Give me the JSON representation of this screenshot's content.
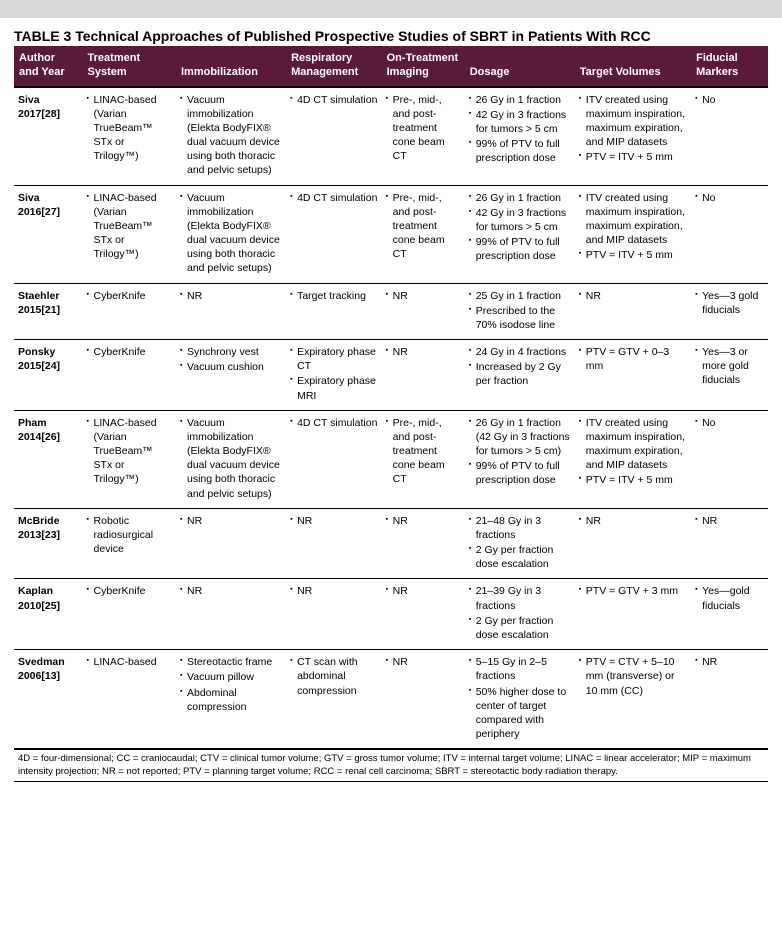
{
  "title_label": "TABLE 3",
  "title_text": "Technical Approaches of Published Prospective Studies of SBRT in Patients With RCC",
  "columns": [
    "Author and Year",
    "Treatment System",
    "Immobilization",
    "Respiratory Management",
    "On-Treatment Imaging",
    "Dosage",
    "Target Volumes",
    "Fiducial Markers"
  ],
  "rows": [
    {
      "author": "Siva 2017[28]",
      "system": [
        "LINAC-based (Varian TrueBeam™ STx or Trilogy™)"
      ],
      "immobilization": [
        "Vacuum immobilization (Elekta BodyFIX® dual vacuum device using both thoracic and pelvic setups)"
      ],
      "respiratory": [
        "4D CT simulation"
      ],
      "imaging": [
        "Pre-, mid-, and post-treatment cone beam CT"
      ],
      "dosage": [
        "26 Gy in 1 fraction",
        "42 Gy in 3 fractions for tumors > 5 cm",
        "99% of PTV to full prescription dose"
      ],
      "target": [
        "ITV created using maximum inspiration, maximum expiration, and MIP datasets",
        "PTV = ITV + 5 mm"
      ],
      "fiducial": [
        "No"
      ]
    },
    {
      "author": "Siva 2016[27]",
      "system": [
        "LINAC-based (Varian TrueBeam™ STx or Trilogy™)"
      ],
      "immobilization": [
        "Vacuum immobilization (Elekta BodyFIX® dual vacuum device using both thoracic and pelvic setups)"
      ],
      "respiratory": [
        "4D CT simulation"
      ],
      "imaging": [
        "Pre-, mid-, and post-treatment cone beam CT"
      ],
      "dosage": [
        "26 Gy in 1 fraction",
        "42 Gy in 3 fractions for tumors > 5 cm",
        "99% of PTV to full prescription dose"
      ],
      "target": [
        "ITV created using maximum inspiration, maximum expiration, and MIP datasets",
        "PTV = ITV + 5 mm"
      ],
      "fiducial": [
        "No"
      ]
    },
    {
      "author": "Staehler 2015[21]",
      "system": [
        "CyberKnife"
      ],
      "immobilization": [
        "NR"
      ],
      "respiratory": [
        "Target tracking"
      ],
      "imaging": [
        "NR"
      ],
      "dosage": [
        "25 Gy in 1 fraction",
        "Prescribed to the 70% isodose line"
      ],
      "target": [
        "NR"
      ],
      "fiducial": [
        "Yes—3 gold fiducials"
      ]
    },
    {
      "author": "Ponsky 2015[24]",
      "system": [
        "CyberKnife"
      ],
      "immobilization": [
        "Synchrony vest",
        "Vacuum cushion"
      ],
      "respiratory": [
        "Expiratory phase CT",
        "Expiratory phase MRI"
      ],
      "imaging": [
        "NR"
      ],
      "dosage": [
        "24 Gy in 4 fractions",
        "Increased by 2 Gy per fraction"
      ],
      "target": [
        "PTV = GTV + 0–3 mm"
      ],
      "fiducial": [
        "Yes—3 or more gold fiducials"
      ]
    },
    {
      "author": "Pham 2014[26]",
      "system": [
        "LINAC-based (Varian TrueBeam™ STx or Trilogy™)"
      ],
      "immobilization": [
        "Vacuum immobilization (Elekta BodyFIX® dual vacuum device using both thoracic and pelvic setups)"
      ],
      "respiratory": [
        "4D CT simulation"
      ],
      "imaging": [
        "Pre-, mid-, and post-treatment cone beam CT"
      ],
      "dosage": [
        "26 Gy in 1 fraction (42 Gy in 3 fractions for tumors > 5 cm)",
        "99% of PTV to full prescription dose"
      ],
      "target": [
        "ITV created using maximum inspiration, maximum expiration, and MIP datasets",
        "PTV = ITV + 5 mm"
      ],
      "fiducial": [
        "No"
      ]
    },
    {
      "author": "McBride 2013[23]",
      "system": [
        "Robotic radiosurgical device"
      ],
      "immobilization": [
        "NR"
      ],
      "respiratory": [
        "NR"
      ],
      "imaging": [
        "NR"
      ],
      "dosage": [
        "21–48 Gy in 3 fractions",
        "2 Gy per fraction dose escalation"
      ],
      "target": [
        "NR"
      ],
      "fiducial": [
        "NR"
      ]
    },
    {
      "author": "Kaplan 2010[25]",
      "system": [
        "CyberKnife"
      ],
      "immobilization": [
        "NR"
      ],
      "respiratory": [
        "NR"
      ],
      "imaging": [
        "NR"
      ],
      "dosage": [
        "21–39 Gy in 3 fractions",
        "2 Gy per fraction dose escalation"
      ],
      "target": [
        "PTV = GTV + 3 mm"
      ],
      "fiducial": [
        "Yes—gold fiducials"
      ]
    },
    {
      "author": "Svedman 2006[13]",
      "system": [
        "LINAC-based"
      ],
      "immobilization": [
        "Stereotactic frame",
        "Vacuum pillow",
        "Abdominal compression"
      ],
      "respiratory": [
        "CT scan with abdominal compression"
      ],
      "imaging": [
        "NR"
      ],
      "dosage": [
        "5–15 Gy in 2–5 fractions",
        "50% higher dose to center of target compared with periphery"
      ],
      "target": [
        "PTV = CTV + 5–10 mm (transverse) or 10 mm (CC)"
      ],
      "fiducial": [
        "NR"
      ]
    }
  ],
  "footnote": "4D = four-dimensional; CC = craniocaudal; CTV = clinical tumor volume; GTV = gross tumor volume; ITV = internal target volume; LINAC = linear accelerator; MIP = maximum intensity projection; NR = not reported; PTV = planning target volume; RCC = renal cell carcinoma; SBRT = stereotactic body radiation therapy."
}
